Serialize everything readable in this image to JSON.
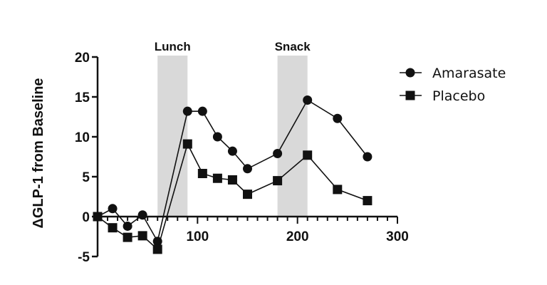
{
  "chart_data": {
    "type": "line",
    "title": "",
    "xlabel": "",
    "ylabel": "ΔGLP-1 from Baseline",
    "xlim": [
      0,
      300
    ],
    "ylim": [
      -5,
      20
    ],
    "x_ticks": [
      100,
      200,
      300
    ],
    "x_tick_labels": [
      "100",
      "200",
      "300"
    ],
    "x_minor_tick_step": 10,
    "y_ticks": [
      -5,
      0,
      5,
      10,
      15,
      20
    ],
    "y_tick_labels": [
      "-5",
      "0",
      "5",
      "10",
      "15",
      "20"
    ],
    "grid": false,
    "legend_position": "right",
    "x": [
      0,
      15,
      30,
      45,
      60,
      90,
      105,
      120,
      135,
      150,
      180,
      210,
      240,
      270
    ],
    "series": [
      {
        "name": "Amarasate",
        "marker": "circle",
        "values": [
          0,
          1.0,
          -1.2,
          0.2,
          -3.1,
          13.2,
          13.2,
          10.0,
          8.2,
          6.0,
          7.9,
          14.6,
          12.3,
          7.5
        ]
      },
      {
        "name": "Placebo",
        "marker": "square",
        "values": [
          0,
          -1.4,
          -2.6,
          -2.4,
          -4.1,
          9.1,
          5.4,
          4.8,
          4.6,
          2.8,
          4.5,
          7.7,
          3.4,
          2.0
        ]
      }
    ],
    "annotations": [
      {
        "label": "Lunch",
        "type": "shaded_band",
        "x_start": 60,
        "x_end": 90
      },
      {
        "label": "Snack",
        "type": "shaded_band",
        "x_start": 180,
        "x_end": 210
      }
    ],
    "colors": {
      "line": "#111111",
      "band": "#d9d9d9"
    }
  }
}
